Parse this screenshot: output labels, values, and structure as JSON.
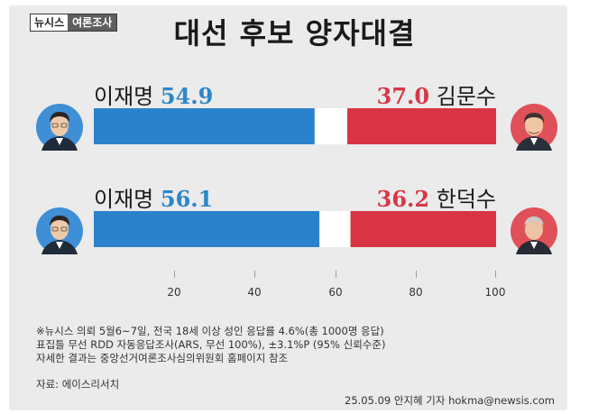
{
  "brand": {
    "left": "뉴시스",
    "right": "여론조사"
  },
  "title": "대선 후보 양자대결",
  "chart_data": {
    "type": "bar",
    "orientation": "horizontal-stacked",
    "title": "대선 후보 양자대결",
    "xlim": [
      0,
      100
    ],
    "ticks": [
      20,
      40,
      60,
      80,
      100
    ],
    "rows": [
      {
        "left_name": "이재명",
        "left_value": 54.9,
        "left_label": "54.9",
        "right_name": "김문수",
        "right_value": 37.0,
        "right_label": "37.0"
      },
      {
        "left_name": "이재명",
        "left_value": 56.1,
        "left_label": "56.1",
        "right_name": "한덕수",
        "right_value": 36.2,
        "right_label": "36.2"
      }
    ],
    "colors": {
      "left": "#2b82cc",
      "right": "#d93445"
    }
  },
  "notes": [
    "※뉴시스 의뢰 5월6~7일, 전국 18세 이상 성인 응답률 4.6%(총 1000명 응답)",
    "표집틀 무선 RDD 자동응답조사(ARS, 무선 100%), ±3.1%P (95% 신뢰수준)",
    "자세한 결과는 중앙선거여론조사심의위원회 홈페이지 참조"
  ],
  "source": "자료: 에이스리서치",
  "credit": "25.05.09 안지혜 기자 hokma@newsis.com"
}
